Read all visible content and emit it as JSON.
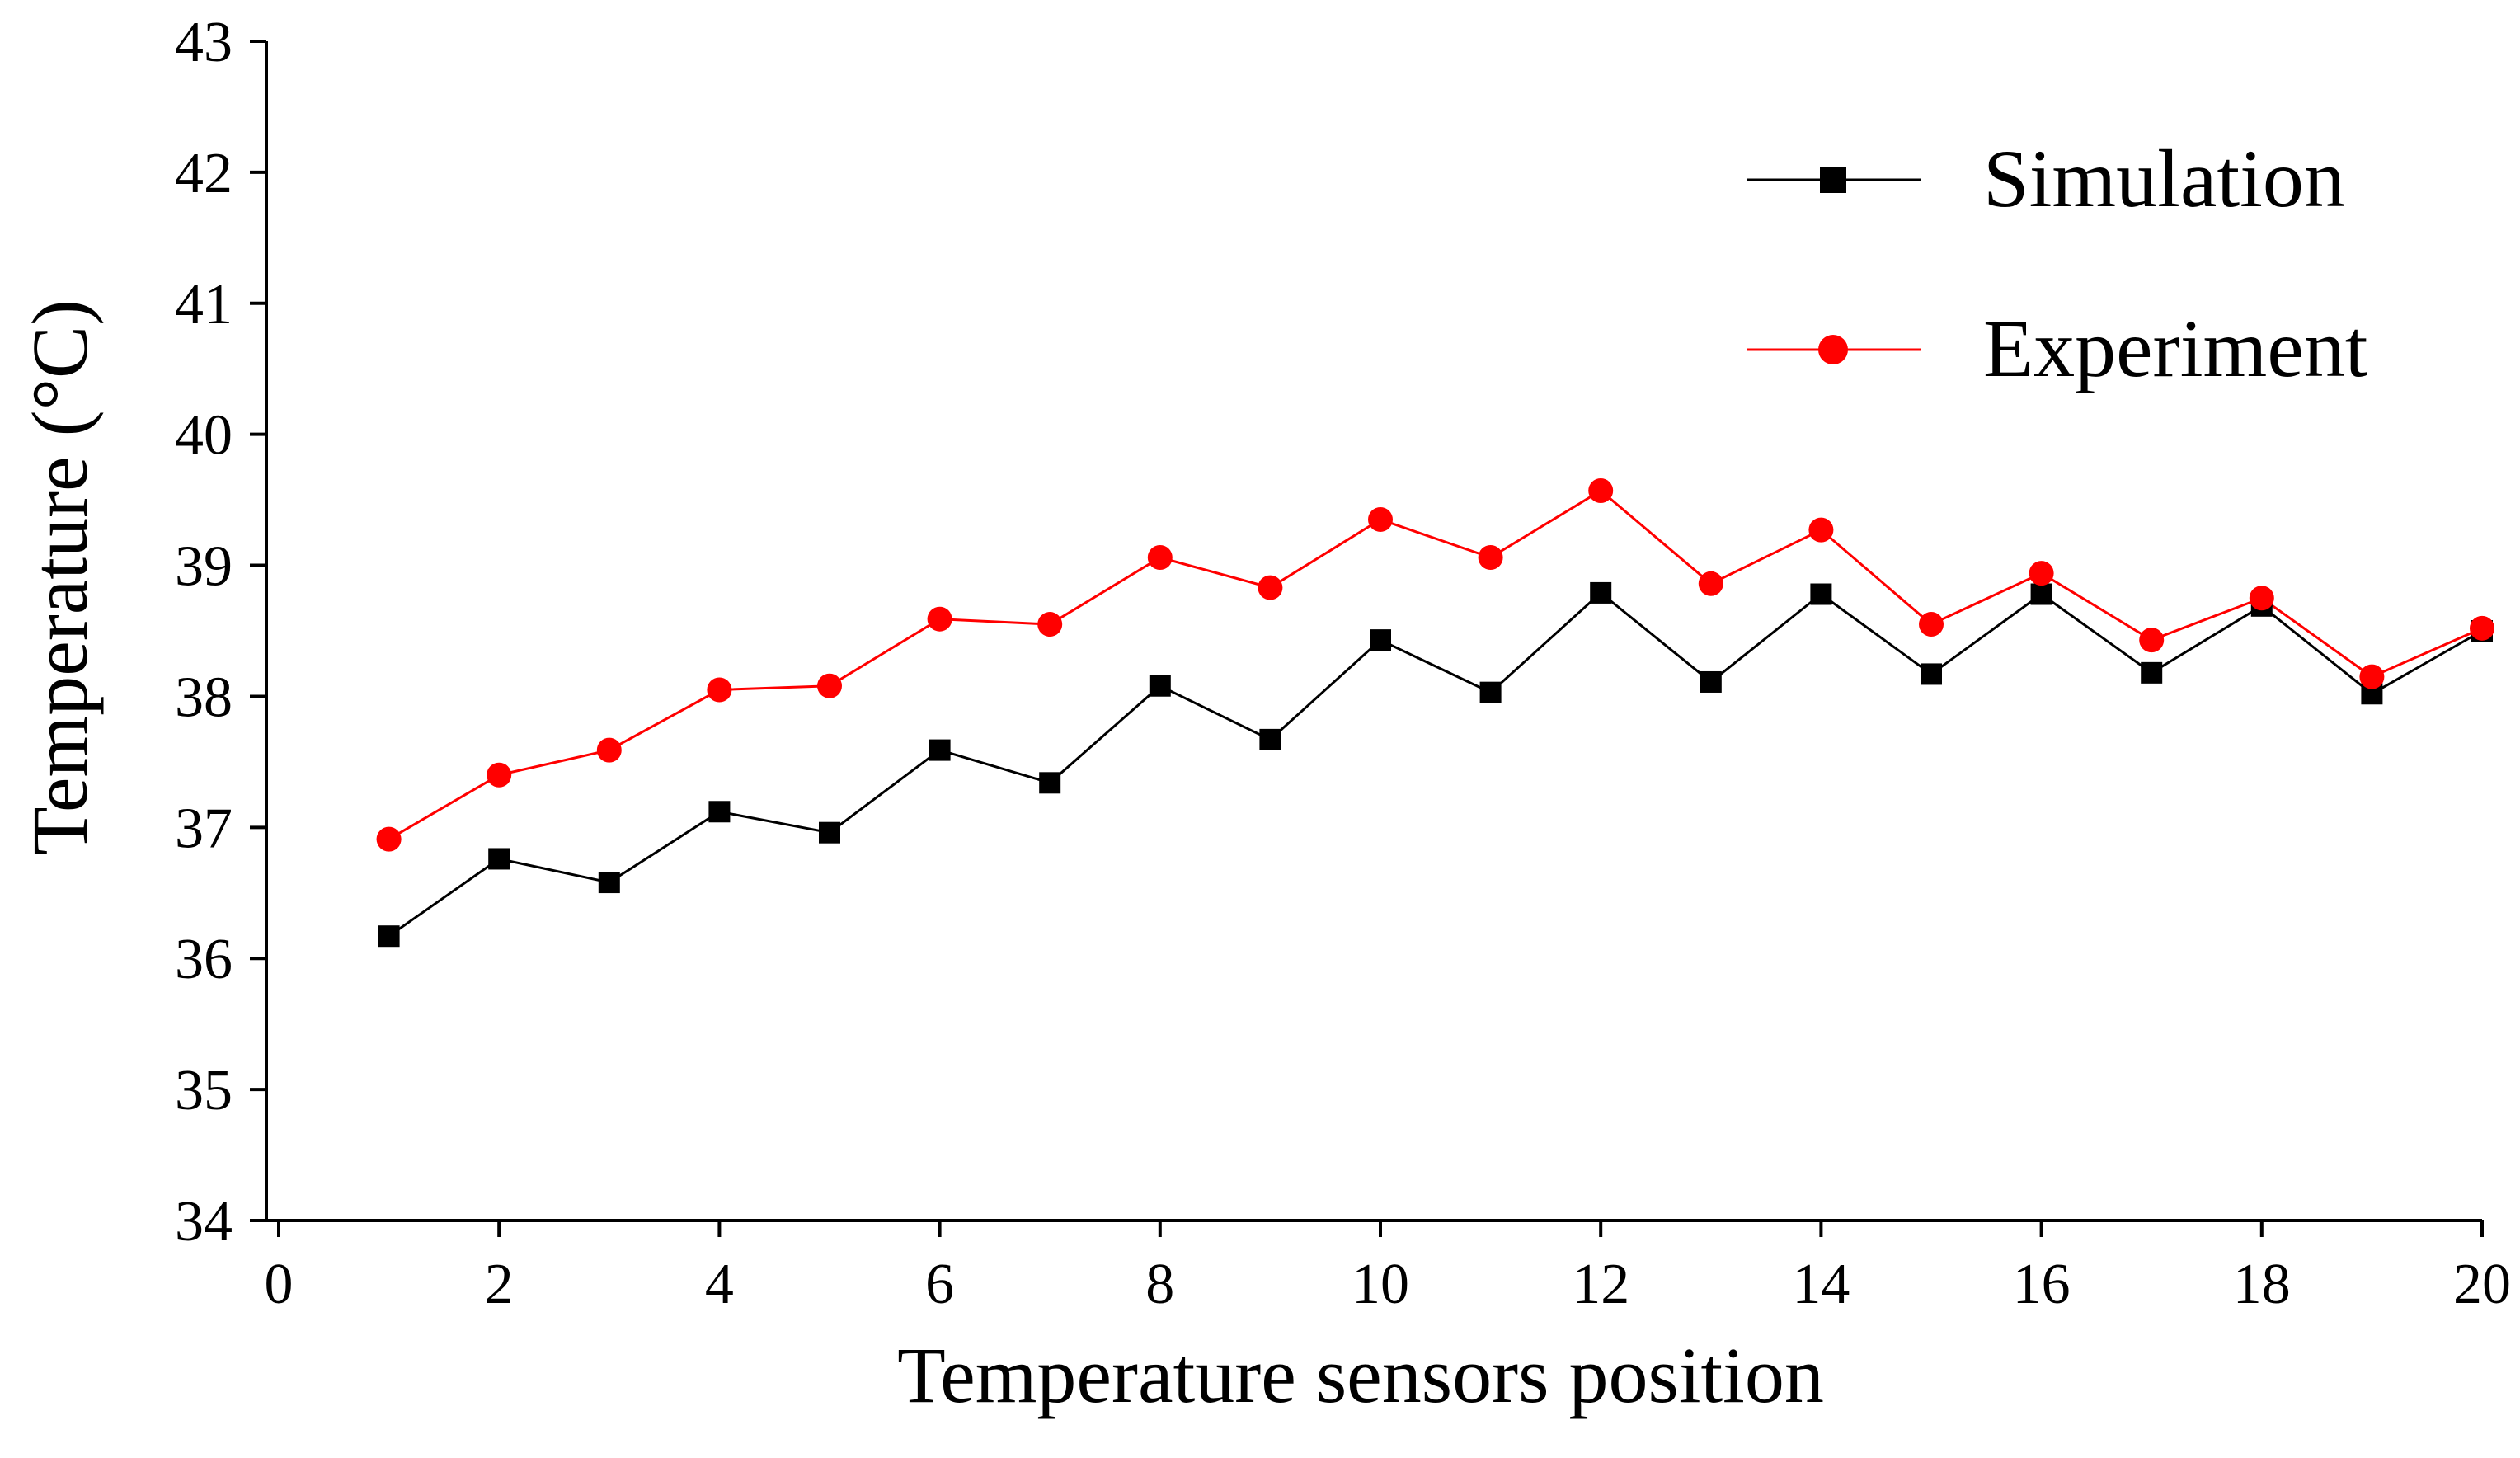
{
  "chart_data": {
    "type": "line",
    "title": "",
    "xlabel": "Temperature sensors position",
    "ylabel": "Temperature (°C)",
    "xlim": [
      0,
      20
    ],
    "ylim": [
      34,
      43
    ],
    "xticks": [
      0,
      2,
      4,
      6,
      8,
      10,
      12,
      14,
      16,
      18,
      20
    ],
    "yticks": [
      34,
      35,
      36,
      37,
      38,
      39,
      40,
      41,
      42,
      43
    ],
    "grid": false,
    "legend_position": "top-right",
    "x": [
      1,
      2,
      3,
      4,
      5,
      6,
      7,
      8,
      9,
      10,
      11,
      12,
      13,
      14,
      15,
      16,
      17,
      18,
      19,
      20
    ],
    "series": [
      {
        "name": "Simulation",
        "color": "#000000",
        "marker": "square",
        "values": [
          36.17,
          36.76,
          36.58,
          37.12,
          36.96,
          37.59,
          37.34,
          38.08,
          37.67,
          38.43,
          38.03,
          38.79,
          38.11,
          38.78,
          38.17,
          38.78,
          38.18,
          38.69,
          38.02,
          38.5
        ]
      },
      {
        "name": "Experiment",
        "color": "#ff0000",
        "marker": "circle",
        "values": [
          36.91,
          37.4,
          37.59,
          38.05,
          38.08,
          38.59,
          38.55,
          39.06,
          38.83,
          39.35,
          39.06,
          39.57,
          38.86,
          39.27,
          38.55,
          38.94,
          38.43,
          38.75,
          38.15,
          38.52
        ]
      }
    ]
  }
}
